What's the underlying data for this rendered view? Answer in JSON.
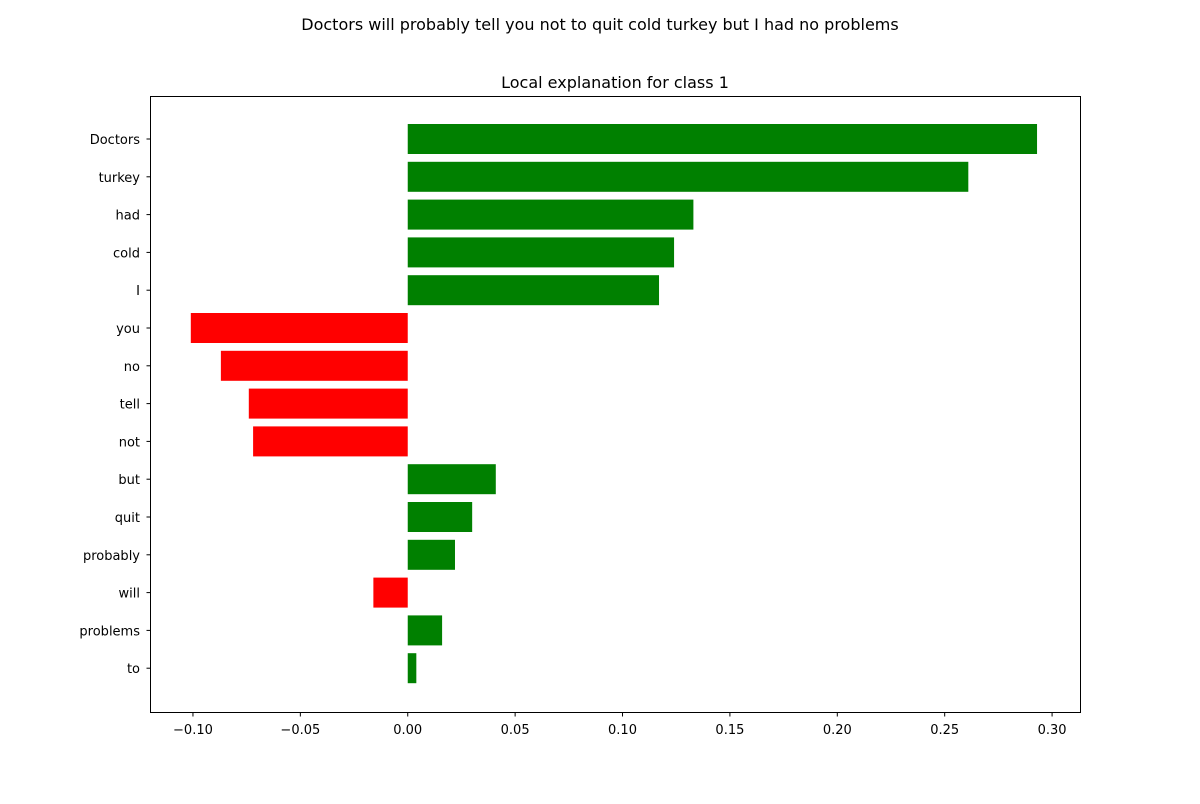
{
  "figure": {
    "suptitle": "Doctors will probably tell you not to quit cold turkey but I had no problems"
  },
  "chart_data": {
    "type": "bar",
    "orientation": "horizontal",
    "title": "Local explanation for class 1",
    "xlabel": "",
    "ylabel": "",
    "categories": [
      "Doctors",
      "turkey",
      "had",
      "cold",
      "I",
      "you",
      "no",
      "tell",
      "not",
      "but",
      "quit",
      "probably",
      "will",
      "problems",
      "to"
    ],
    "values": [
      0.293,
      0.261,
      0.133,
      0.124,
      0.117,
      -0.101,
      -0.087,
      -0.074,
      -0.072,
      0.041,
      0.03,
      0.022,
      -0.016,
      0.016,
      0.004
    ],
    "xlim": [
      -0.12,
      0.313
    ],
    "xticks": [
      -0.1,
      -0.05,
      0.0,
      0.05,
      0.1,
      0.15,
      0.2,
      0.25,
      0.3
    ],
    "xtick_labels": [
      "−0.10",
      "−0.05",
      "0.00",
      "0.05",
      "0.10",
      "0.15",
      "0.20",
      "0.25",
      "0.30"
    ],
    "positive_color": "#008000",
    "negative_color": "#ff0000",
    "grid": false,
    "legend": "none"
  }
}
